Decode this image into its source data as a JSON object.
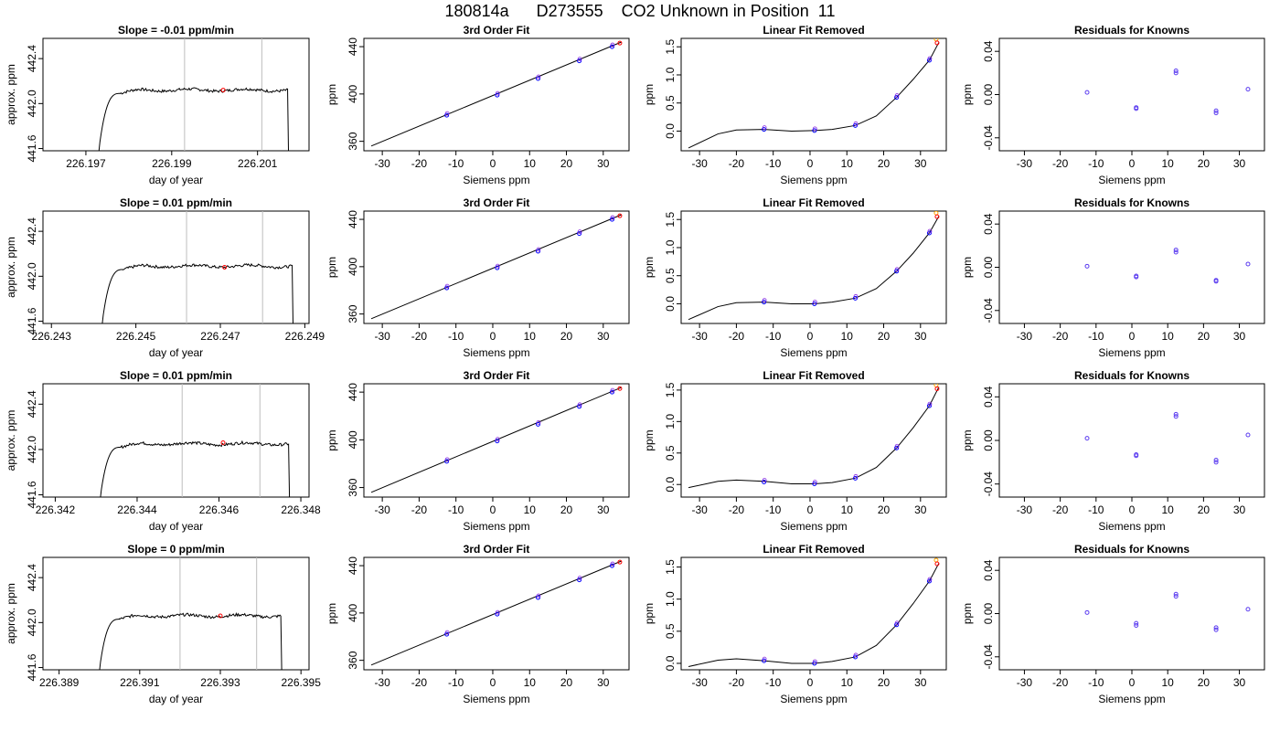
{
  "title": "180814a      D273555    CO2 Unknown in Position  11",
  "chart_data": [
    {
      "type": "line",
      "title": "Slope =  -0.01  ppm/min",
      "xlabel": "day of year",
      "ylabel": "approx. ppm",
      "xlim": [
        226.196,
        226.2022
      ],
      "ylim": [
        441.58,
        442.58
      ],
      "xticks": [
        "226.197",
        "226.199",
        "226.201"
      ],
      "yticks": [
        "441.6",
        "442.0",
        "442.4"
      ],
      "vlines": [
        226.1993,
        226.2011
      ],
      "trace": {
        "start": 226.1973,
        "rise_end": 226.1978,
        "end": 226.2017,
        "level": 442.12
      },
      "marker": {
        "x": 226.2002,
        "y": 442.12
      }
    },
    {
      "type": "scatter",
      "title": "3rd Order Fit",
      "xlabel": "Siemens ppm",
      "ylabel": "ppm",
      "xlim": [
        -35,
        37
      ],
      "ylim": [
        352,
        447
      ],
      "xticks": [
        -30,
        -20,
        -10,
        0,
        10,
        20,
        30
      ],
      "yticks": [
        360,
        400,
        440
      ],
      "knowns": [
        [
          -12.5,
          382
        ],
        [
          1.2,
          399
        ],
        [
          12.3,
          413
        ],
        [
          23.5,
          428
        ],
        [
          32.4,
          440
        ]
      ],
      "unknown": [
        34.5,
        443
      ],
      "fit_line": [
        [
          -33,
          356
        ],
        [
          35,
          444
        ]
      ]
    },
    {
      "type": "scatter",
      "title": "Linear Fit Removed",
      "xlabel": "Siemens ppm",
      "ylabel": "ppm",
      "xlim": [
        -35,
        37
      ],
      "ylim": [
        -0.35,
        1.65
      ],
      "xticks": [
        -30,
        -20,
        -10,
        0,
        10,
        20,
        30
      ],
      "yticks": [
        "0.0",
        "0.5",
        "1.0",
        "1.5"
      ],
      "knowns": [
        [
          -12.5,
          0.03
        ],
        [
          1.2,
          0.01
        ],
        [
          12.3,
          0.1
        ],
        [
          23.5,
          0.6
        ],
        [
          32.4,
          1.26
        ]
      ],
      "unknown": [
        34.5,
        1.57
      ],
      "curve": [
        [
          -33,
          -0.3
        ],
        [
          -25,
          -0.05
        ],
        [
          -20,
          0.02
        ],
        [
          -12.5,
          0.03
        ],
        [
          -5,
          0.0
        ],
        [
          1.2,
          0.01
        ],
        [
          6,
          0.03
        ],
        [
          12.3,
          0.1
        ],
        [
          18,
          0.27
        ],
        [
          23.5,
          0.6
        ],
        [
          28,
          0.92
        ],
        [
          32.4,
          1.26
        ],
        [
          35,
          1.58
        ]
      ]
    },
    {
      "type": "scatter",
      "title": "Residuals for Knowns",
      "xlabel": "Siemens ppm",
      "ylabel": "ppm",
      "xlim": [
        -37,
        37
      ],
      "ylim": [
        -0.052,
        0.052
      ],
      "xticks": [
        -30,
        -20,
        -10,
        0,
        10,
        20,
        30
      ],
      "yticks": [
        "-0.04",
        "0.00",
        "0.04"
      ],
      "points": [
        [
          -12.5,
          0.002
        ],
        [
          1.2,
          -0.012
        ],
        [
          1.2,
          -0.013
        ],
        [
          12.3,
          0.02
        ],
        [
          12.3,
          0.022
        ],
        [
          23.5,
          -0.015
        ],
        [
          23.5,
          -0.017
        ],
        [
          32.4,
          0.005
        ]
      ]
    },
    {
      "type": "line",
      "title": "Slope =  0.01  ppm/min",
      "xlabel": "day of year",
      "ylabel": "approx. ppm",
      "xlim": [
        226.2428,
        226.2491
      ],
      "ylim": [
        441.58,
        442.58
      ],
      "xticks": [
        "226.243",
        "226.245",
        "226.247",
        "226.249"
      ],
      "yticks": [
        "441.6",
        "442.0",
        "442.4"
      ],
      "vlines": [
        226.2462,
        226.248
      ],
      "trace": {
        "start": 226.2442,
        "rise_end": 226.2447,
        "end": 226.2487,
        "level": 442.09
      },
      "marker": {
        "x": 226.2471,
        "y": 442.08
      }
    },
    {
      "type": "scatter",
      "title": "3rd Order Fit",
      "xlabel": "Siemens ppm",
      "ylabel": "ppm",
      "xlim": [
        -35,
        37
      ],
      "ylim": [
        352,
        447
      ],
      "xticks": [
        -30,
        -20,
        -10,
        0,
        10,
        20,
        30
      ],
      "yticks": [
        360,
        400,
        440
      ],
      "knowns": [
        [
          -12.5,
          382
        ],
        [
          1.2,
          399
        ],
        [
          12.3,
          413
        ],
        [
          23.5,
          428
        ],
        [
          32.4,
          440
        ]
      ],
      "unknown": [
        34.5,
        443
      ],
      "fit_line": [
        [
          -33,
          356
        ],
        [
          35,
          444
        ]
      ]
    },
    {
      "type": "scatter",
      "title": "Linear Fit Removed",
      "xlabel": "Siemens ppm",
      "ylabel": "ppm",
      "xlim": [
        -35,
        37
      ],
      "ylim": [
        -0.35,
        1.65
      ],
      "xticks": [
        -30,
        -20,
        -10,
        0,
        10,
        20,
        30
      ],
      "yticks": [
        "0.0",
        "0.5",
        "1.0",
        "1.5"
      ],
      "knowns": [
        [
          -12.5,
          0.03
        ],
        [
          1.2,
          0.0
        ],
        [
          12.3,
          0.1
        ],
        [
          23.5,
          0.58
        ],
        [
          32.4,
          1.26
        ]
      ],
      "unknown": [
        34.5,
        1.55
      ],
      "curve": [
        [
          -33,
          -0.28
        ],
        [
          -25,
          -0.05
        ],
        [
          -20,
          0.02
        ],
        [
          -12.5,
          0.03
        ],
        [
          -5,
          0.0
        ],
        [
          1.2,
          0.0
        ],
        [
          6,
          0.03
        ],
        [
          12.3,
          0.1
        ],
        [
          18,
          0.27
        ],
        [
          23.5,
          0.58
        ],
        [
          28,
          0.9
        ],
        [
          32.4,
          1.26
        ],
        [
          35,
          1.56
        ]
      ]
    },
    {
      "type": "scatter",
      "title": "Residuals for Knowns",
      "xlabel": "Siemens ppm",
      "ylabel": "ppm",
      "xlim": [
        -37,
        37
      ],
      "ylim": [
        -0.052,
        0.052
      ],
      "xticks": [
        -30,
        -20,
        -10,
        0,
        10,
        20,
        30
      ],
      "yticks": [
        "-0.04",
        "0.00",
        "0.04"
      ],
      "points": [
        [
          -12.5,
          0.001
        ],
        [
          1.2,
          -0.008
        ],
        [
          1.2,
          -0.009
        ],
        [
          12.3,
          0.014
        ],
        [
          12.3,
          0.016
        ],
        [
          23.5,
          -0.012
        ],
        [
          23.5,
          -0.013
        ],
        [
          32.4,
          0.003
        ]
      ]
    },
    {
      "type": "line",
      "title": "Slope =  0.01  ppm/min",
      "xlabel": "day of year",
      "ylabel": "approx. ppm",
      "xlim": [
        226.3417,
        226.3482
      ],
      "ylim": [
        441.58,
        442.58
      ],
      "xticks": [
        "226.342",
        "226.344",
        "226.346",
        "226.348"
      ],
      "yticks": [
        "441.6",
        "442.0",
        "442.4"
      ],
      "vlines": [
        226.3451,
        226.347
      ],
      "trace": {
        "start": 226.3431,
        "rise_end": 226.3436,
        "end": 226.3477,
        "level": 442.05
      },
      "marker": {
        "x": 226.3461,
        "y": 442.06
      }
    },
    {
      "type": "scatter",
      "title": "3rd Order Fit",
      "xlabel": "Siemens ppm",
      "ylabel": "ppm",
      "xlim": [
        -35,
        37
      ],
      "ylim": [
        352,
        447
      ],
      "xticks": [
        -30,
        -20,
        -10,
        0,
        10,
        20,
        30
      ],
      "yticks": [
        360,
        400,
        440
      ],
      "knowns": [
        [
          -12.5,
          382
        ],
        [
          1.2,
          399
        ],
        [
          12.3,
          413
        ],
        [
          23.5,
          428
        ],
        [
          32.4,
          440
        ]
      ],
      "unknown": [
        34.5,
        443
      ],
      "fit_line": [
        [
          -33,
          356
        ],
        [
          35,
          444
        ]
      ]
    },
    {
      "type": "scatter",
      "title": "Linear Fit Removed",
      "xlabel": "Siemens ppm",
      "ylabel": "ppm",
      "xlim": [
        -35,
        37
      ],
      "ylim": [
        -0.2,
        1.6
      ],
      "xticks": [
        -30,
        -20,
        -10,
        0,
        10,
        20,
        30
      ],
      "yticks": [
        "0.0",
        "0.5",
        "1.0",
        "1.5"
      ],
      "knowns": [
        [
          -12.5,
          0.04
        ],
        [
          1.2,
          0.01
        ],
        [
          12.3,
          0.1
        ],
        [
          23.5,
          0.58
        ],
        [
          32.4,
          1.25
        ]
      ],
      "unknown": [
        34.5,
        1.52
      ],
      "curve": [
        [
          -33,
          -0.05
        ],
        [
          -25,
          0.05
        ],
        [
          -20,
          0.07
        ],
        [
          -12.5,
          0.05
        ],
        [
          -5,
          0.01
        ],
        [
          1.2,
          0.01
        ],
        [
          6,
          0.03
        ],
        [
          12.3,
          0.1
        ],
        [
          18,
          0.27
        ],
        [
          23.5,
          0.58
        ],
        [
          28,
          0.9
        ],
        [
          32.4,
          1.25
        ],
        [
          35,
          1.55
        ]
      ]
    },
    {
      "type": "scatter",
      "title": "Residuals for Knowns",
      "xlabel": "Siemens ppm",
      "ylabel": "ppm",
      "xlim": [
        -37,
        37
      ],
      "ylim": [
        -0.052,
        0.052
      ],
      "xticks": [
        -30,
        -20,
        -10,
        0,
        10,
        20,
        30
      ],
      "yticks": [
        "-0.04",
        "0.00",
        "0.04"
      ],
      "points": [
        [
          -12.5,
          0.002
        ],
        [
          1.2,
          -0.013
        ],
        [
          1.2,
          -0.014
        ],
        [
          12.3,
          0.022
        ],
        [
          12.3,
          0.024
        ],
        [
          23.5,
          -0.018
        ],
        [
          23.5,
          -0.02
        ],
        [
          32.4,
          0.005
        ]
      ]
    },
    {
      "type": "line",
      "title": "Slope =  0  ppm/min",
      "xlabel": "day of year",
      "ylabel": "approx. ppm",
      "xlim": [
        226.3886,
        226.3952
      ],
      "ylim": [
        441.58,
        442.58
      ],
      "xticks": [
        "226.389",
        "226.391",
        "226.393",
        "226.395"
      ],
      "yticks": [
        "441.6",
        "442.0",
        "442.4"
      ],
      "vlines": [
        226.392,
        226.3939
      ],
      "trace": {
        "start": 226.39,
        "rise_end": 226.3905,
        "end": 226.3945,
        "level": 442.06
      },
      "marker": {
        "x": 226.393,
        "y": 442.06
      }
    },
    {
      "type": "scatter",
      "title": "3rd Order Fit",
      "xlabel": "Siemens ppm",
      "ylabel": "ppm",
      "xlim": [
        -35,
        37
      ],
      "ylim": [
        352,
        447
      ],
      "xticks": [
        -30,
        -20,
        -10,
        0,
        10,
        20,
        30
      ],
      "yticks": [
        360,
        400,
        440
      ],
      "knowns": [
        [
          -12.5,
          382
        ],
        [
          1.2,
          399
        ],
        [
          12.3,
          413
        ],
        [
          23.5,
          428
        ],
        [
          32.4,
          440
        ]
      ],
      "unknown": [
        34.5,
        443
      ],
      "fit_line": [
        [
          -33,
          356
        ],
        [
          35,
          444
        ]
      ]
    },
    {
      "type": "scatter",
      "title": "Linear Fit Removed",
      "xlabel": "Siemens ppm",
      "ylabel": "ppm",
      "xlim": [
        -35,
        37
      ],
      "ylim": [
        -0.1,
        1.65
      ],
      "xticks": [
        -30,
        -20,
        -10,
        0,
        10,
        20,
        30
      ],
      "yticks": [
        "0.0",
        "0.5",
        "1.0",
        "1.5"
      ],
      "knowns": [
        [
          -12.5,
          0.04
        ],
        [
          1.2,
          0.0
        ],
        [
          12.3,
          0.1
        ],
        [
          23.5,
          0.6
        ],
        [
          32.4,
          1.28
        ]
      ],
      "unknown": [
        34.5,
        1.55
      ],
      "curve": [
        [
          -33,
          -0.05
        ],
        [
          -25,
          0.05
        ],
        [
          -20,
          0.07
        ],
        [
          -12.5,
          0.04
        ],
        [
          -5,
          0.0
        ],
        [
          1.2,
          0.0
        ],
        [
          6,
          0.03
        ],
        [
          12.3,
          0.1
        ],
        [
          18,
          0.28
        ],
        [
          23.5,
          0.6
        ],
        [
          28,
          0.93
        ],
        [
          32.4,
          1.28
        ],
        [
          35,
          1.56
        ]
      ]
    },
    {
      "type": "scatter",
      "title": "Residuals for Knowns",
      "xlabel": "Siemens ppm",
      "ylabel": "ppm",
      "xlim": [
        -37,
        37
      ],
      "ylim": [
        -0.052,
        0.052
      ],
      "xticks": [
        -30,
        -20,
        -10,
        0,
        10,
        20,
        30
      ],
      "yticks": [
        "-0.04",
        "0.00",
        "0.04"
      ],
      "points": [
        [
          -12.5,
          0.001
        ],
        [
          1.2,
          -0.009
        ],
        [
          1.2,
          -0.011
        ],
        [
          12.3,
          0.016
        ],
        [
          12.3,
          0.018
        ],
        [
          23.5,
          -0.013
        ],
        [
          23.5,
          -0.015
        ],
        [
          32.4,
          0.004
        ]
      ]
    }
  ]
}
